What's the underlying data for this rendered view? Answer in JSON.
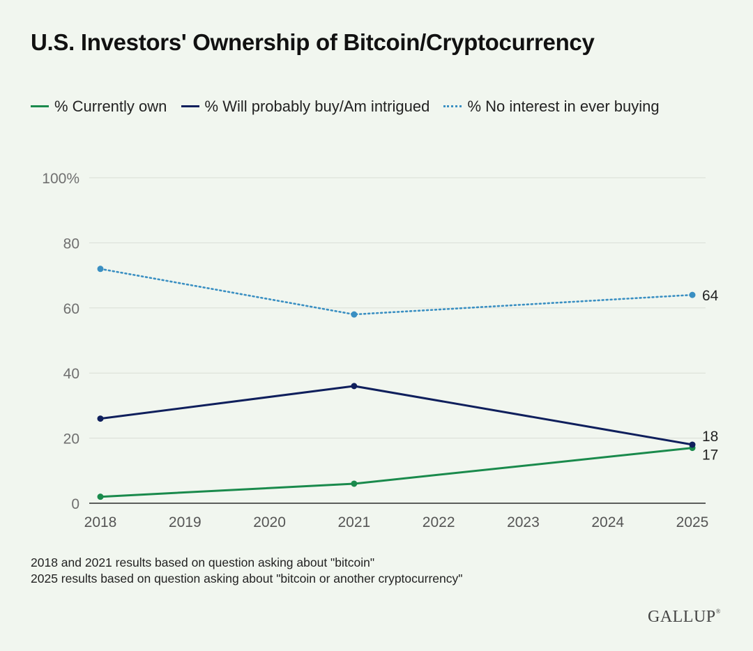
{
  "chart_data": {
    "type": "line",
    "title": "U.S. Investors' Ownership of Bitcoin/Cryptocurrency",
    "xlabel": "",
    "ylabel": "",
    "x": [
      "2018",
      "2019",
      "2020",
      "2021",
      "2022",
      "2023",
      "2024",
      "2025"
    ],
    "x_values": [
      2018,
      2019,
      2020,
      2021,
      2022,
      2023,
      2024,
      2025
    ],
    "xlim": [
      2018,
      2025
    ],
    "ylim": [
      0,
      100
    ],
    "y_ticks": [
      0,
      20,
      40,
      60,
      80,
      100
    ],
    "y_tick_labels": [
      "0",
      "20",
      "40",
      "60",
      "80",
      "100%"
    ],
    "grid": true,
    "legend_position": "top",
    "series": [
      {
        "name": "% Currently own",
        "color": "#1a8a4c",
        "style": "solid",
        "points": [
          [
            2018,
            2
          ],
          [
            2021,
            6
          ],
          [
            2025,
            17
          ]
        ],
        "end_label": "17"
      },
      {
        "name": "% Will probably buy/Am intrigued",
        "color": "#0f1f5c",
        "style": "solid",
        "points": [
          [
            2018,
            26
          ],
          [
            2021,
            36
          ],
          [
            2025,
            18
          ]
        ],
        "end_label": "18"
      },
      {
        "name": "% No interest in ever buying",
        "color": "#3a8fc2",
        "style": "dotted",
        "points": [
          [
            2018,
            72
          ],
          [
            2021,
            58
          ],
          [
            2025,
            64
          ]
        ],
        "end_label": "64"
      }
    ]
  },
  "notes": [
    "2018 and 2021 results based on question asking about \"bitcoin\"",
    "2025 results based on question asking about \"bitcoin or another cryptocurrency\""
  ],
  "brand": "GALLUP"
}
